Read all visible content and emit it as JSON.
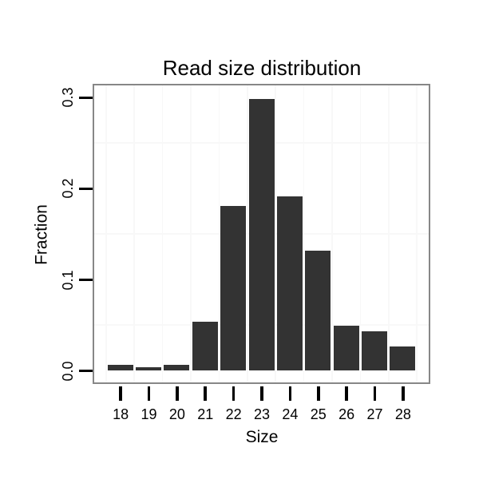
{
  "chart_data": {
    "type": "bar",
    "title": "Read size distribution",
    "xlabel": "Size",
    "ylabel": "Fraction",
    "categories": [
      "18",
      "19",
      "20",
      "21",
      "22",
      "23",
      "24",
      "25",
      "26",
      "27",
      "28"
    ],
    "values": [
      0.0065,
      0.004,
      0.006,
      0.054,
      0.181,
      0.298,
      0.191,
      0.132,
      0.049,
      0.043,
      0.026
    ],
    "yticks": [
      0,
      0.1,
      0.2,
      0.3
    ],
    "ytick_labels": [
      "0.0",
      "0.1",
      "0.2",
      "0.3"
    ],
    "ylim": [
      -0.013,
      0.313
    ],
    "legend": "none",
    "grid": {
      "horizontal_lines": [
        0.05,
        0.15,
        0.25
      ],
      "vertical_lines": "midpoints-between-categories",
      "color": "#f8f8f8"
    },
    "colors": {
      "bar": "#333333",
      "panel_border": "#878787",
      "tick": "#000000",
      "text": "#000000",
      "background": "#ffffff"
    }
  }
}
